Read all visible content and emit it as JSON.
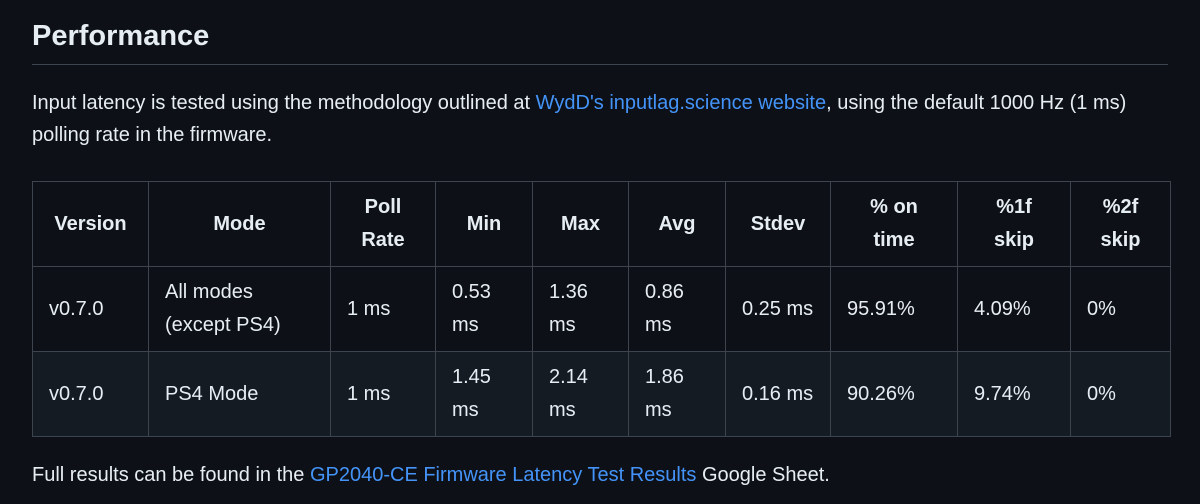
{
  "heading": "Performance",
  "intro": {
    "before": "Input latency is tested using the methodology outlined at ",
    "link": "WydD's inputlag.science website",
    "after": ", using the default 1000 Hz (1 ms) polling rate in the firmware."
  },
  "table": {
    "header": [
      "Version",
      "Mode",
      "Poll Rate",
      "Min",
      "Max",
      "Avg",
      "Stdev",
      "% on time",
      "%1f skip",
      "%2f skip"
    ],
    "rows": [
      [
        "v0.7.0",
        "All modes (except PS4)",
        "1 ms",
        "0.53 ms",
        "1.36 ms",
        "0.86 ms",
        "0.25 ms",
        "95.91%",
        "4.09%",
        "0%"
      ],
      [
        "v0.7.0",
        "PS4 Mode",
        "1 ms",
        "1.45 ms",
        "2.14 ms",
        "1.86 ms",
        "0.16 ms",
        "90.26%",
        "9.74%",
        "0%"
      ]
    ]
  },
  "footer": {
    "before": "Full results can be found in the ",
    "link": "GP2040-CE Firmware Latency Test Results",
    "after": " Google Sheet."
  }
}
